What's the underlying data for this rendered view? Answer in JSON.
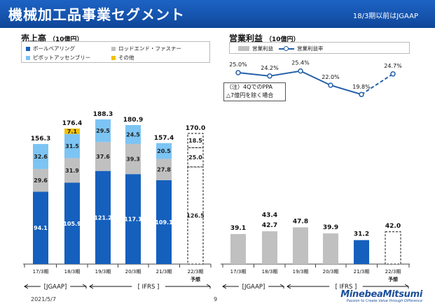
{
  "header": {
    "title": "機械加工品事業セグメント",
    "note": "18/3期以前はJGAAP"
  },
  "left_panel": {
    "title": "売上高",
    "unit": "（10億円）",
    "legend": [
      {
        "label": "ボールベアリング",
        "color": "#1560bd"
      },
      {
        "label": "ロッドエンド・ファスナー",
        "color": "#c0c0c0"
      },
      {
        "label": "ピボットアッセンブリー",
        "color": "#7cc4f4"
      },
      {
        "label": "その他",
        "color": "#f2c000"
      }
    ]
  },
  "right_panel": {
    "title": "営業利益",
    "unit": "（10億円）",
    "legend": [
      {
        "label": "営業利益",
        "color": "#c0c0c0"
      },
      {
        "label": "営業利益率",
        "color": "#2360a8"
      }
    ],
    "annotation_lines": [
      "（注）4QでのPPA",
      "△7億円を除く場合"
    ]
  },
  "chart_data": [
    {
      "type": "bar",
      "stacked": true,
      "title": "売上高",
      "unit": "（10億円）",
      "categories": [
        "17/3期",
        "18/3期",
        "19/3期",
        "20/3期",
        "21/3期",
        "22/3期"
      ],
      "forecast_label": "予想",
      "series": [
        {
          "name": "ボールベアリング",
          "color": "#1560bd",
          "values": [
            94.1,
            105.9,
            121.2,
            117.1,
            109.1,
            126.5
          ]
        },
        {
          "name": "ロッドエンド・ファスナー",
          "color": "#c0c0c0",
          "values": [
            29.6,
            31.9,
            37.6,
            39.3,
            27.8,
            25.0
          ]
        },
        {
          "name": "ピボットアッセンブリー",
          "color": "#7cc4f4",
          "values": [
            32.6,
            31.5,
            29.5,
            24.5,
            20.5,
            18.5
          ]
        },
        {
          "name": "その他",
          "color": "#f2c000",
          "values": [
            null,
            7.1,
            null,
            null,
            null,
            null
          ]
        }
      ],
      "totals": [
        156.3,
        176.4,
        188.3,
        180.9,
        157.4,
        170.0
      ],
      "forecast_index": 5,
      "ylim": [
        0,
        200
      ],
      "eras": [
        {
          "label": "[JGAAP]",
          "from": 0,
          "to": 1
        },
        {
          "label": "[ IFRS ]",
          "from": 2,
          "to": 5
        }
      ]
    },
    {
      "type": "bar",
      "title": "営業利益",
      "unit": "（10億円）",
      "categories": [
        "17/3期",
        "18/3期",
        "19/3期",
        "20/3期",
        "21/3期",
        "22/3期"
      ],
      "forecast_label": "予想",
      "series": [
        {
          "name": "営業利益",
          "color": "#c0c0c0",
          "values": [
            39.1,
            42.7,
            47.8,
            39.9,
            31.2,
            42.0
          ]
        }
      ],
      "bar_value_labels": [
        "39.1",
        "42.7",
        "47.8",
        "39.9",
        "31.2",
        "42.0"
      ],
      "highlight_index": 4,
      "highlight_color": "#1560bd",
      "forecast_index": 5,
      "adjusted_value": {
        "index": 1,
        "value": 43.4,
        "label": "43.4"
      },
      "line_series": {
        "name": "営業利益率",
        "color": "#2360a8",
        "values": [
          25.0,
          24.2,
          25.4,
          22.0,
          19.8,
          24.7
        ],
        "labels": [
          "25.0%",
          "24.2%",
          "25.4%",
          "22.0%",
          "19.8%",
          "24.7%"
        ]
      },
      "ylim": [
        0,
        200
      ],
      "eras": [
        {
          "label": "[JGAAP]",
          "from": 0,
          "to": 1
        },
        {
          "label": "[ IFRS ]",
          "from": 2,
          "to": 5
        }
      ]
    }
  ],
  "footer": {
    "date": "2021/5/7",
    "page": "9",
    "logo": "MinebeaMitsumi",
    "tagline": "Passion to Create Value through Difference"
  }
}
